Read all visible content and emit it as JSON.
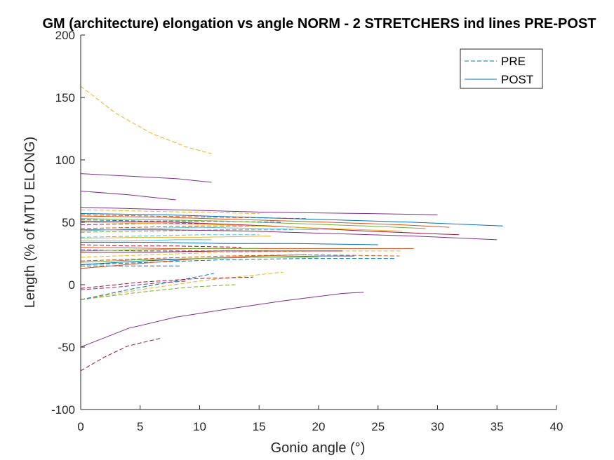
{
  "chart_data": {
    "type": "line",
    "title": "GM (architecture) elongation vs angle NORM - 2 STRETCHERS ind lines PRE-POST",
    "xlabel": "Gonio angle (°)",
    "ylabel": "Length (% of MTU ELONG)",
    "xlim": [
      0,
      40
    ],
    "ylim": [
      -100,
      200
    ],
    "xticks": [
      0,
      5,
      10,
      15,
      20,
      25,
      30,
      35,
      40
    ],
    "yticks": [
      -100,
      -50,
      0,
      50,
      100,
      150,
      200
    ],
    "grid": false,
    "legend": {
      "position": "top-right",
      "entries": [
        {
          "label": "PRE",
          "style": "dashed",
          "color": "#0072BD"
        },
        {
          "label": "POST",
          "style": "solid",
          "color": "#0072BD"
        }
      ]
    },
    "series": [
      {
        "group": "PRE",
        "color": "#EDB120",
        "x": [
          0,
          3,
          6,
          9,
          11
        ],
        "y": [
          159,
          137,
          121,
          110,
          105
        ]
      },
      {
        "group": "PRE",
        "color": "#A2142F",
        "x": [
          0,
          2,
          4,
          6.7
        ],
        "y": [
          -69,
          -58,
          -49,
          -43
        ]
      },
      {
        "group": "PRE",
        "color": "#EDB120",
        "x": [
          0,
          5,
          10,
          14,
          17
        ],
        "y": [
          -12,
          -4,
          3,
          7,
          10
        ]
      },
      {
        "group": "PRE",
        "color": "#0072BD",
        "x": [
          0,
          4,
          8,
          11.2
        ],
        "y": [
          -12,
          -4,
          3,
          9
        ]
      },
      {
        "group": "PRE",
        "color": "#77AC30",
        "x": [
          0,
          5,
          9,
          13
        ],
        "y": [
          -12,
          -6,
          -2,
          0
        ]
      },
      {
        "group": "PRE",
        "color": "#7E2F8E",
        "x": [
          0,
          3,
          6,
          9
        ],
        "y": [
          -4,
          -2,
          1,
          3
        ]
      },
      {
        "group": "PRE",
        "color": "#A2142F",
        "x": [
          0,
          5,
          10,
          14.5
        ],
        "y": [
          -3,
          2,
          5,
          6
        ]
      },
      {
        "group": "PRE",
        "color": "#D95319",
        "x": [
          0,
          6,
          12,
          19,
          26.8
        ],
        "y": [
          19,
          21,
          23,
          24,
          23
        ]
      },
      {
        "group": "PRE",
        "color": "#0072BD",
        "x": [
          0,
          6,
          12,
          19,
          26.5
        ],
        "y": [
          16,
          18,
          20,
          21,
          21
        ]
      },
      {
        "group": "PRE",
        "color": "#0072BD",
        "x": [
          0,
          3,
          6,
          8.5
        ],
        "y": [
          15,
          15,
          15,
          15
        ]
      },
      {
        "group": "PRE",
        "color": "#EDB120",
        "x": [
          0,
          6,
          12,
          20,
          27
        ],
        "y": [
          22,
          24,
          26,
          27,
          27
        ]
      },
      {
        "group": "PRE",
        "color": "#7E2F8E",
        "x": [
          0,
          5,
          10,
          16
        ],
        "y": [
          28,
          27,
          27,
          27
        ]
      },
      {
        "group": "PRE",
        "color": "#A2142F",
        "x": [
          0,
          4,
          8,
          13.5
        ],
        "y": [
          32,
          31,
          31,
          30
        ]
      },
      {
        "group": "PRE",
        "color": "#4DBEEE",
        "x": [
          0,
          5,
          10,
          15
        ],
        "y": [
          38,
          39,
          40,
          40
        ]
      },
      {
        "group": "PRE",
        "color": "#77AC30",
        "x": [
          0,
          6,
          12,
          18
        ],
        "y": [
          42,
          43,
          44,
          44
        ]
      },
      {
        "group": "PRE",
        "color": "#D95319",
        "x": [
          0,
          5,
          10,
          15
        ],
        "y": [
          45,
          46,
          47,
          47
        ]
      },
      {
        "group": "PRE",
        "color": "#7E2F8E",
        "x": [
          0,
          5,
          10
        ],
        "y": [
          48,
          49,
          49
        ]
      },
      {
        "group": "PRE",
        "color": "#0072BD",
        "x": [
          0,
          5,
          10,
          17
        ],
        "y": [
          52,
          51,
          51,
          50
        ]
      },
      {
        "group": "PRE",
        "color": "#D95319",
        "x": [
          0,
          6,
          12,
          19
        ],
        "y": [
          56,
          55,
          54,
          53
        ]
      },
      {
        "group": "PRE",
        "color": "#EDB120",
        "x": [
          0,
          5,
          10,
          15
        ],
        "y": [
          60,
          59,
          58,
          57
        ]
      },
      {
        "group": "POST",
        "color": "#7E2F8E",
        "x": [
          0,
          4,
          8,
          12,
          17,
          22,
          23.8
        ],
        "y": [
          -50,
          -35,
          -26,
          -20,
          -13,
          -7,
          -6
        ]
      },
      {
        "group": "POST",
        "color": "#7E2F8E",
        "x": [
          0,
          4,
          8,
          11
        ],
        "y": [
          89,
          87,
          85,
          82
        ]
      },
      {
        "group": "POST",
        "color": "#7E2F8E",
        "x": [
          0,
          4,
          8
        ],
        "y": [
          75,
          72,
          68
        ]
      },
      {
        "group": "POST",
        "color": "#7E2F8E",
        "x": [
          0,
          8,
          16,
          24,
          30
        ],
        "y": [
          62,
          60,
          58,
          57,
          56
        ]
      },
      {
        "group": "POST",
        "color": "#0072BD",
        "x": [
          0,
          7,
          14,
          21,
          28,
          35.5
        ],
        "y": [
          57,
          56,
          54,
          52,
          50,
          47
        ]
      },
      {
        "group": "POST",
        "color": "#D95319",
        "x": [
          0,
          7,
          14,
          21,
          27,
          31
        ],
        "y": [
          55,
          54,
          52,
          50,
          48,
          46
        ]
      },
      {
        "group": "POST",
        "color": "#77AC30",
        "x": [
          0,
          6,
          12,
          18,
          24,
          29
        ],
        "y": [
          53,
          52,
          51,
          49,
          47,
          45
        ]
      },
      {
        "group": "POST",
        "color": "#A2142F",
        "x": [
          0,
          8,
          16,
          24,
          31.8
        ],
        "y": [
          51,
          50,
          47,
          43,
          40
        ]
      },
      {
        "group": "POST",
        "color": "#EDB120",
        "x": [
          0,
          6,
          12,
          18,
          24,
          27
        ],
        "y": [
          50,
          49,
          48,
          46,
          44,
          43
        ]
      },
      {
        "group": "POST",
        "color": "#7E2F8E",
        "x": [
          0,
          7,
          14,
          21,
          28,
          35
        ],
        "y": [
          44,
          44,
          43,
          41,
          39,
          36
        ]
      },
      {
        "group": "POST",
        "color": "#4DBEEE",
        "x": [
          0,
          5,
          10,
          15,
          20
        ],
        "y": [
          43,
          45,
          46,
          45,
          44
        ]
      },
      {
        "group": "POST",
        "color": "#0072BD",
        "x": [
          0,
          6,
          12,
          18,
          25
        ],
        "y": [
          34,
          34,
          33,
          33,
          32
        ]
      },
      {
        "group": "POST",
        "color": "#D95319",
        "x": [
          0,
          7,
          14,
          21,
          28
        ],
        "y": [
          30,
          29,
          29,
          29,
          29
        ]
      },
      {
        "group": "POST",
        "color": "#77AC30",
        "x": [
          0,
          5,
          10,
          15
        ],
        "y": [
          27,
          28,
          29,
          29
        ]
      },
      {
        "group": "POST",
        "color": "#A2142F",
        "x": [
          0,
          6,
          12,
          18,
          22
        ],
        "y": [
          26,
          26,
          27,
          27,
          27
        ]
      },
      {
        "group": "POST",
        "color": "#EDB120",
        "x": [
          0,
          5,
          10,
          16
        ],
        "y": [
          37,
          38,
          38,
          39
        ]
      },
      {
        "group": "POST",
        "color": "#4DBEEE",
        "x": [
          0,
          4,
          8,
          11
        ],
        "y": [
          35,
          35,
          36,
          36
        ]
      },
      {
        "group": "POST",
        "color": "#0072BD",
        "x": [
          0,
          5,
          10,
          15,
          20,
          23
        ],
        "y": [
          16,
          19,
          21,
          22,
          23,
          23
        ]
      },
      {
        "group": "POST",
        "color": "#D95319",
        "x": [
          0,
          5,
          10,
          15,
          19
        ],
        "y": [
          13,
          17,
          21,
          23,
          24
        ]
      },
      {
        "group": "POST",
        "color": "#77AC30",
        "x": [
          0,
          5,
          10,
          15,
          20
        ],
        "y": [
          18,
          20,
          21,
          22,
          22
        ]
      }
    ]
  }
}
